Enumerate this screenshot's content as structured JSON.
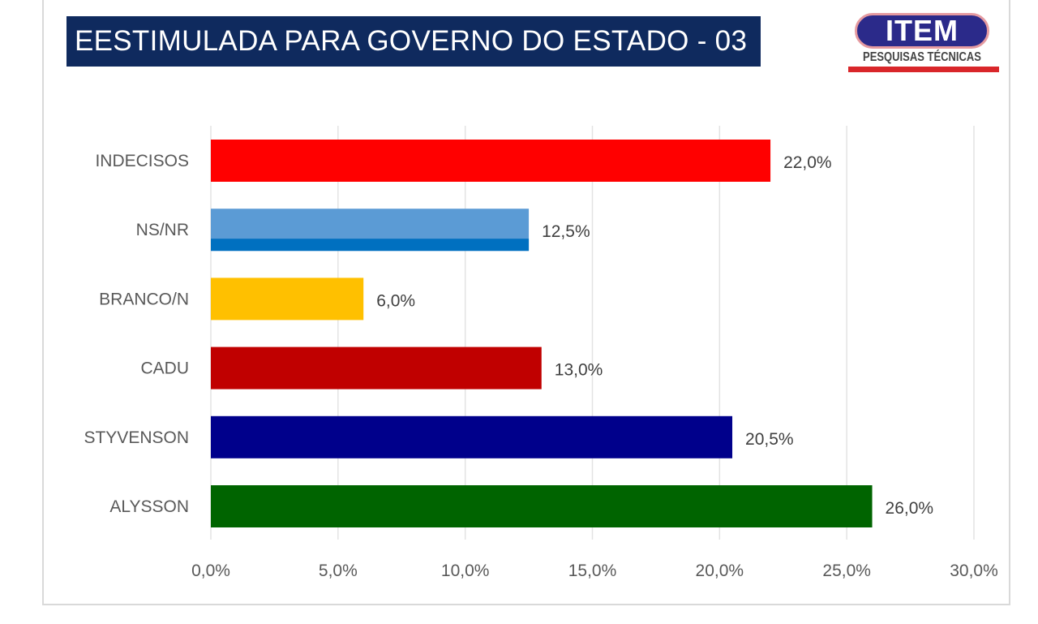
{
  "title": "EESTIMULADA PARA GOVERNO DO ESTADO - 03",
  "logo": {
    "name": "ITEM",
    "subtitle": "PESQUISAS TÉCNICAS"
  },
  "chart_data": {
    "type": "bar",
    "orientation": "horizontal",
    "title": "EESTIMULADA PARA GOVERNO DO ESTADO - 03",
    "categories": [
      "INDECISOS",
      "NS/NR",
      "BRANCO/N",
      "CADU",
      "STYVENSON",
      "ALYSSON"
    ],
    "values": [
      22.0,
      12.5,
      6.0,
      13.0,
      20.5,
      26.0
    ],
    "value_labels": [
      "22,0%",
      "12,5%",
      "6,0%",
      "13,0%",
      "20,5%",
      "26,0%"
    ],
    "colors": [
      "#ff0000",
      "#5b9bd5",
      "#ffc000",
      "#c00000",
      "#00008b",
      "#006400"
    ],
    "xlim": [
      0,
      30
    ],
    "xticks": [
      0,
      5,
      10,
      15,
      20,
      25,
      30
    ],
    "xtick_labels": [
      "0,0%",
      "5,0%",
      "10,0%",
      "15,0%",
      "20,0%",
      "25,0%",
      "30,0%"
    ],
    "xlabel": "",
    "ylabel": "",
    "grid": true
  }
}
